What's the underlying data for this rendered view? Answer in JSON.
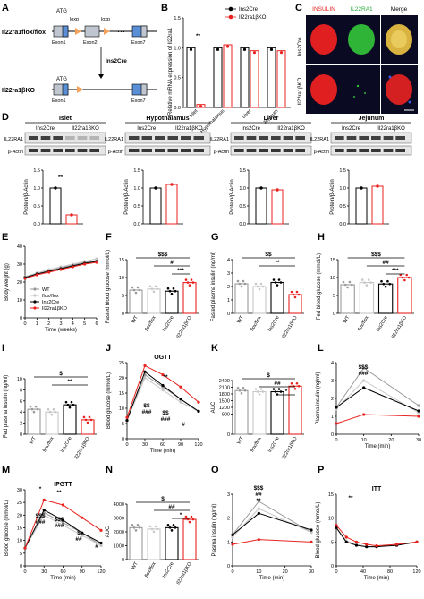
{
  "panel_labels": [
    "A",
    "B",
    "C",
    "D",
    "E",
    "F",
    "G",
    "H",
    "I",
    "J",
    "K",
    "L",
    "M",
    "N",
    "O",
    "P"
  ],
  "panelA": {
    "flox_label": "Il22ra1flox/flox",
    "ko_label": "Il22ra1βKO",
    "cross_label": "Ins2Cre",
    "atg": "ATG",
    "loxp": "loxp",
    "exons": [
      "Exon1",
      "Exon2",
      "Exon7"
    ],
    "dots": "⋯"
  },
  "panelB": {
    "ylabel": "Relative mRNA expression of Il22ra1",
    "legend": [
      "Ins2Cre",
      "Il22ra1βKO"
    ],
    "categories": [
      "Islet",
      "Hypothalamus",
      "Liver",
      "Jejunum"
    ],
    "sig": "**",
    "ticks": [
      "0.0",
      "0.5",
      "1.0",
      "1.5"
    ]
  },
  "panelC": {
    "headers": [
      "INSULIN",
      "IL22RA1",
      "Merge"
    ],
    "rows": [
      "Ins2Cre",
      "Il22ra1βKO"
    ]
  },
  "panelD": {
    "tissues": [
      "Islet",
      "Hypothalamus",
      "Liver",
      "Jejunum"
    ],
    "groups": [
      "Ins2Cre",
      "Il22ra1βKO"
    ],
    "bands": [
      "IL22RA1",
      "β-Actin"
    ],
    "ylabel": "Protein/β-Actin",
    "sig": "**",
    "ticks": [
      "0.0",
      "0.5",
      "1.0",
      "1.5"
    ]
  },
  "panelE": {
    "ylabel": "Body weight (g)",
    "xlabel": "Time (weeks)",
    "legend": [
      "WT",
      "flox/flox",
      "Ins2Cre",
      "Il22ra1βKO"
    ],
    "xticks": [
      "0",
      "1",
      "2",
      "3",
      "4",
      "5",
      "6"
    ],
    "yticks": [
      "0",
      "10",
      "20",
      "30",
      "40"
    ]
  },
  "panelF": {
    "ylabel": "Fasted blood glucose (mmol/L)",
    "sigs": [
      "$$$",
      "#",
      "***"
    ],
    "yticks": [
      "0",
      "5",
      "10",
      "15"
    ]
  },
  "panelG": {
    "ylabel": "Fasted plasma insulin (ng/ml)",
    "sigs": [
      "$$",
      "**"
    ],
    "yticks": [
      "0",
      "1",
      "2",
      "3",
      "4"
    ]
  },
  "panelH": {
    "ylabel": "Fed blood glucose (mmol/L)",
    "sigs": [
      "$$$",
      "##",
      "***"
    ],
    "yticks": [
      "0",
      "5",
      "10",
      "15"
    ]
  },
  "panelI": {
    "ylabel": "Fed plasma insulin (ng/ml)",
    "sigs": [
      "$",
      "**"
    ],
    "yticks": [
      "0",
      "2",
      "4",
      "6",
      "8",
      "10"
    ]
  },
  "panelJ": {
    "title": "OGTT",
    "ylabel": "Blood glucose (mmol/L)",
    "xlabel": "Time (min)",
    "sigs": [
      "**",
      "$$",
      "###",
      "$$",
      "###",
      "#"
    ],
    "xticks": [
      "0",
      "30",
      "60",
      "90",
      "120"
    ],
    "yticks": [
      "0",
      "5",
      "10",
      "15",
      "20",
      "25"
    ]
  },
  "panelK": {
    "ylabel": "AUC",
    "sigs": [
      "$",
      "##",
      "*"
    ],
    "yticks": [
      "0",
      "900",
      "1200",
      "1500",
      "1800",
      "2100",
      "2400"
    ]
  },
  "panelL": {
    "ylabel": "Plasma insulin (ng/ml)",
    "xlabel": "Time (min)",
    "sigs": [
      "$$$",
      "###"
    ],
    "xticks": [
      "0",
      "10",
      "20",
      "30"
    ],
    "yticks": [
      "0",
      "1",
      "2",
      "3",
      "4"
    ]
  },
  "panelM": {
    "title": "IPGTT",
    "ylabel": "Blood glucose (mmol/L)",
    "xlabel": "Time (min)",
    "sigs": [
      "*",
      "**",
      "$$$",
      "###",
      "$$$",
      "###",
      "$",
      "##",
      "#"
    ],
    "xticks": [
      "0",
      "30",
      "60",
      "90",
      "120"
    ],
    "yticks": [
      "0",
      "5",
      "10",
      "15",
      "20",
      "25",
      "30"
    ]
  },
  "panelN": {
    "ylabel": "AUC",
    "sigs": [
      "$",
      "##",
      "*"
    ],
    "yticks": [
      "0",
      "1000",
      "2000",
      "3000",
      "4000"
    ]
  },
  "panelO": {
    "ylabel": "Plasma insulin (ng/ml)",
    "xlabel": "Time (min)",
    "sigs": [
      "$$$",
      "##",
      "**"
    ],
    "xticks": [
      "0",
      "10",
      "20",
      "30"
    ],
    "yticks": [
      "0",
      "1",
      "2",
      "3"
    ]
  },
  "panelP": {
    "title": "ITT",
    "ylabel": "Blood glucose (mmol/L)",
    "xlabel": "Time (min)",
    "sigs": [
      "**"
    ],
    "xticks": [
      "0",
      "40",
      "80",
      "120"
    ],
    "yticks": [
      "0",
      "5",
      "10",
      "15"
    ]
  },
  "groups4": [
    "WT",
    "flox/flox",
    "Ins2Cre",
    "Il22ra1βKO"
  ],
  "colors": {
    "wt": "#9a9a9a",
    "flox": "#c8c8c8",
    "cre": "#000000",
    "ko": "#e8231f"
  },
  "chart_data": [
    {
      "panel": "B",
      "type": "bar",
      "categories": [
        "Islet",
        "Hypothalamus",
        "Liver",
        "Jejunum"
      ],
      "series": [
        {
          "name": "Ins2Cre",
          "values": [
            1.0,
            1.0,
            1.0,
            1.0
          ]
        },
        {
          "name": "Il22ra1βKO",
          "values": [
            0.05,
            1.05,
            0.95,
            0.95
          ]
        }
      ],
      "ylim": [
        0,
        1.5
      ]
    },
    {
      "panel": "D",
      "type": "bar",
      "categories": [
        "Islet",
        "Hypothalamus",
        "Liver",
        "Jejunum"
      ],
      "series": [
        {
          "name": "Ins2Cre",
          "values": [
            1.0,
            1.0,
            1.0,
            1.0
          ]
        },
        {
          "name": "Il22ra1βKO",
          "values": [
            0.25,
            1.1,
            0.95,
            1.05
          ]
        }
      ],
      "ylim": [
        0,
        1.5
      ]
    },
    {
      "panel": "E",
      "type": "line",
      "x": [
        0,
        1,
        2,
        3,
        4,
        5,
        6
      ],
      "series": [
        {
          "name": "WT",
          "values": [
            23,
            25,
            26.5,
            28,
            29.5,
            31,
            32
          ]
        },
        {
          "name": "flox/flox",
          "values": [
            23,
            25,
            27,
            28.5,
            30,
            31.5,
            33
          ]
        },
        {
          "name": "Ins2Cre",
          "values": [
            22.5,
            24.5,
            26,
            27.5,
            29,
            30.5,
            31.5
          ]
        },
        {
          "name": "Il22ra1βKO",
          "values": [
            22,
            24,
            25.5,
            27,
            28.5,
            30,
            31
          ]
        }
      ],
      "ylim": [
        0,
        40
      ],
      "xlabel": "Time (weeks)",
      "ylabel": "Body weight (g)"
    },
    {
      "panel": "F",
      "type": "bar",
      "categories": [
        "WT",
        "flox/flox",
        "Ins2Cre",
        "Il22ra1βKO"
      ],
      "values": [
        6.5,
        6.8,
        6.2,
        8.6
      ],
      "ylim": [
        0,
        15
      ]
    },
    {
      "panel": "G",
      "type": "bar",
      "categories": [
        "WT",
        "flox/flox",
        "Ins2Cre",
        "Il22ra1βKO"
      ],
      "values": [
        2.2,
        2.0,
        2.3,
        1.4
      ],
      "ylim": [
        0,
        4
      ]
    },
    {
      "panel": "H",
      "type": "bar",
      "categories": [
        "WT",
        "flox/flox",
        "Ins2Cre",
        "Il22ra1βKO"
      ],
      "values": [
        8.0,
        8.6,
        8.2,
        10.0
      ],
      "ylim": [
        0,
        15
      ]
    },
    {
      "panel": "I",
      "type": "bar",
      "categories": [
        "WT",
        "flox/flox",
        "Ins2Cre",
        "Il22ra1βKO"
      ],
      "values": [
        4.5,
        4.0,
        5.3,
        2.6
      ],
      "ylim": [
        0,
        10
      ]
    },
    {
      "panel": "J",
      "type": "line",
      "x": [
        0,
        30,
        60,
        90,
        120
      ],
      "series": [
        {
          "name": "WT",
          "values": [
            6,
            21,
            17,
            13,
            9
          ]
        },
        {
          "name": "flox/flox",
          "values": [
            6,
            20,
            16,
            12,
            9
          ]
        },
        {
          "name": "Ins2Cre",
          "values": [
            6,
            22,
            17.5,
            13,
            9
          ]
        },
        {
          "name": "Il22ra1βKO",
          "values": [
            7,
            24,
            21,
            17,
            12
          ]
        }
      ],
      "ylim": [
        0,
        25
      ]
    },
    {
      "panel": "K",
      "type": "bar",
      "categories": [
        "WT",
        "flox/flox",
        "Ins2Cre",
        "Il22ra1βKO"
      ],
      "values": [
        1950,
        1900,
        1900,
        2150
      ],
      "ylim": [
        0,
        2400
      ]
    },
    {
      "panel": "L",
      "type": "line",
      "x": [
        0,
        10,
        30
      ],
      "series": [
        {
          "name": "WT",
          "values": [
            1.5,
            3.7,
            1.6
          ]
        },
        {
          "name": "flox/flox",
          "values": [
            1.4,
            3.0,
            1.2
          ]
        },
        {
          "name": "Ins2Cre",
          "values": [
            1.5,
            2.6,
            1.3
          ]
        },
        {
          "name": "Il22ra1βKO",
          "values": [
            0.6,
            1.1,
            1.0
          ]
        }
      ],
      "ylim": [
        0,
        4
      ]
    },
    {
      "panel": "M",
      "type": "line",
      "x": [
        0,
        30,
        60,
        90,
        120
      ],
      "series": [
        {
          "name": "WT",
          "values": [
            7,
            21,
            17,
            13,
            8
          ]
        },
        {
          "name": "flox/flox",
          "values": [
            7,
            20,
            16,
            12,
            8
          ]
        },
        {
          "name": "Ins2Cre",
          "values": [
            7,
            22,
            18,
            13,
            9
          ]
        },
        {
          "name": "Il22ra1βKO",
          "values": [
            7,
            26,
            24,
            19,
            14
          ]
        }
      ],
      "ylim": [
        0,
        30
      ]
    },
    {
      "panel": "N",
      "type": "bar",
      "categories": [
        "WT",
        "flox/flox",
        "Ins2Cre",
        "Il22ra1βKO"
      ],
      "values": [
        2300,
        2200,
        2300,
        2900
      ],
      "ylim": [
        0,
        4000
      ]
    },
    {
      "panel": "O",
      "type": "line",
      "x": [
        0,
        10,
        30
      ],
      "series": [
        {
          "name": "WT",
          "values": [
            1.3,
            2.7,
            1.4
          ]
        },
        {
          "name": "flox/flox",
          "values": [
            1.2,
            2.4,
            1.4
          ]
        },
        {
          "name": "Ins2Cre",
          "values": [
            1.3,
            2.2,
            1.5
          ]
        },
        {
          "name": "Il22ra1βKO",
          "values": [
            0.9,
            1.1,
            1.0
          ]
        }
      ],
      "ylim": [
        0,
        3
      ]
    },
    {
      "panel": "P",
      "type": "line",
      "x": [
        0,
        15,
        30,
        45,
        60,
        90,
        120
      ],
      "series": [
        {
          "name": "WT",
          "values": [
            8,
            5,
            4.5,
            4,
            4,
            4.5,
            5
          ]
        },
        {
          "name": "flox/flox",
          "values": [
            8,
            5.2,
            4.5,
            4,
            4,
            4.5,
            5
          ]
        },
        {
          "name": "Ins2Cre",
          "values": [
            8,
            5,
            4.3,
            4,
            4,
            4.3,
            5
          ]
        },
        {
          "name": "Il22ra1βKO",
          "values": [
            8.5,
            6,
            5,
            4.5,
            4.2,
            4.5,
            5
          ]
        }
      ],
      "ylim": [
        0,
        15
      ]
    }
  ]
}
